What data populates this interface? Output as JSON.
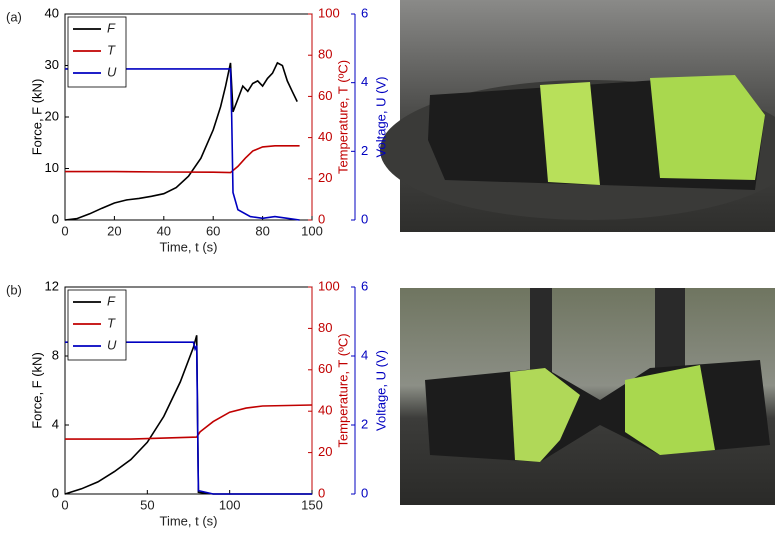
{
  "chart_data": [
    {
      "type": "line",
      "panel": "(a)",
      "xlabel": "Time, t (s)",
      "ylabel": "Force, F (kN)",
      "y2label": "Temperature, T (ºC)",
      "y3label": "Voltage, U (V)",
      "xlim": [
        0,
        100
      ],
      "xticks": [
        0,
        20,
        40,
        60,
        80,
        100
      ],
      "ylim": [
        0,
        40
      ],
      "yticks": [
        0,
        10,
        20,
        30,
        40
      ],
      "y2lim": [
        0,
        100
      ],
      "y2ticks": [
        0,
        20,
        40,
        60,
        80,
        100
      ],
      "y3lim": [
        0,
        6
      ],
      "y3ticks": [
        0,
        2,
        4,
        6
      ],
      "series": [
        {
          "name": "F",
          "color": "#000000",
          "axis": "y",
          "x": [
            0,
            5,
            10,
            15,
            20,
            25,
            30,
            35,
            40,
            45,
            50,
            55,
            60,
            63,
            65,
            67,
            68,
            70,
            72,
            74,
            76,
            78,
            80,
            82,
            84,
            86,
            88,
            90,
            92,
            94
          ],
          "values": [
            0,
            0.3,
            1.2,
            2.3,
            3.3,
            3.9,
            4.2,
            4.6,
            5.1,
            6.3,
            8.5,
            12,
            17.5,
            22,
            26,
            30.5,
            21,
            23.5,
            26,
            25,
            26.5,
            27,
            26,
            27.5,
            28.5,
            30.5,
            30,
            27,
            25,
            23
          ]
        },
        {
          "name": "T",
          "color": "#c00000",
          "axis": "y2",
          "x": [
            0,
            20,
            40,
            60,
            67,
            70,
            73,
            76,
            80,
            85,
            95
          ],
          "values": [
            23.5,
            23.5,
            23.3,
            23.2,
            23,
            26,
            30,
            33.5,
            35.5,
            36,
            36
          ]
        },
        {
          "name": "U",
          "color": "#0000c0",
          "axis": "y3",
          "x": [
            0,
            30,
            67,
            67.5,
            68,
            70,
            75,
            80,
            85,
            90,
            95
          ],
          "values": [
            4.4,
            4.4,
            4.4,
            3,
            0.8,
            0.3,
            0.1,
            0.05,
            0.1,
            0.05,
            0
          ]
        }
      ]
    },
    {
      "type": "line",
      "panel": "(b)",
      "xlabel": "Time, t (s)",
      "ylabel": "Force, F (kN)",
      "y2label": "Temperature, T (ºC)",
      "y3label": "Voltage, U (V)",
      "xlim": [
        0,
        150
      ],
      "xticks": [
        0,
        50,
        100,
        150
      ],
      "ylim": [
        0,
        12
      ],
      "yticks": [
        0,
        4,
        8,
        12
      ],
      "y2lim": [
        0,
        100
      ],
      "y2ticks": [
        0,
        20,
        40,
        60,
        80,
        100
      ],
      "y3lim": [
        0,
        6
      ],
      "y3ticks": [
        0,
        2,
        4,
        6
      ],
      "series": [
        {
          "name": "F",
          "color": "#000000",
          "axis": "y",
          "x": [
            0,
            10,
            20,
            30,
            40,
            50,
            60,
            70,
            78,
            80,
            81,
            90,
            150
          ],
          "values": [
            0,
            0.3,
            0.7,
            1.3,
            2.0,
            3.0,
            4.5,
            6.5,
            8.5,
            9.2,
            0.1,
            0,
            0
          ]
        },
        {
          "name": "T",
          "color": "#c00000",
          "axis": "y2",
          "x": [
            0,
            40,
            80,
            82,
            90,
            100,
            110,
            120,
            150
          ],
          "values": [
            26.5,
            26.5,
            27.5,
            30,
            35,
            39.5,
            41.5,
            42.5,
            43
          ]
        },
        {
          "name": "U",
          "color": "#0000c0",
          "axis": "y3",
          "x": [
            0,
            78,
            79,
            80,
            81,
            90,
            150
          ],
          "values": [
            4.4,
            4.4,
            4.2,
            4.3,
            0.1,
            0,
            0
          ]
        }
      ]
    }
  ]
}
